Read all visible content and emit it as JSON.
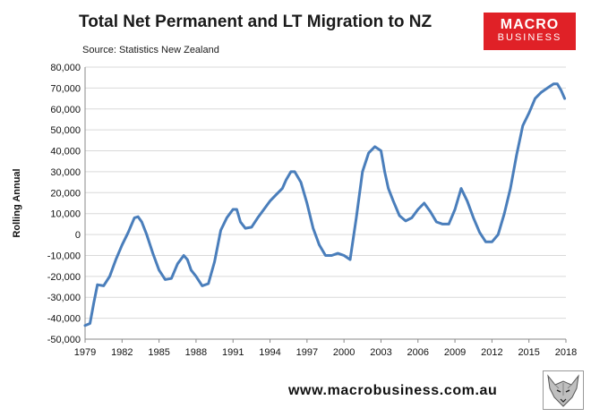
{
  "title": "Total Net Permanent and LT Migration to NZ",
  "source": "Source: Statistics New Zealand",
  "logo": {
    "line1": "MACRO",
    "line2": "BUSINESS"
  },
  "footer_url": "www.macrobusiness.com.au",
  "colors": {
    "line": "#4a7ebb",
    "grid": "#d9d9d9",
    "brand": "#e02127"
  },
  "chart_data": {
    "type": "line",
    "title": "Total Net Permanent and LT Migration to NZ",
    "ylabel": "Rolling Annual",
    "xlabel": "",
    "ylim": [
      -50000,
      80000
    ],
    "xlim": [
      1979,
      2018
    ],
    "grid": "horizontal",
    "y_ticks": [
      "-50,000",
      "-40,000",
      "-30,000",
      "-20,000",
      "-10,000",
      "0",
      "10,000",
      "20,000",
      "30,000",
      "40,000",
      "50,000",
      "60,000",
      "70,000",
      "80,000"
    ],
    "x_ticks": [
      "1979",
      "1982",
      "1985",
      "1988",
      "1991",
      "1994",
      "1997",
      "2000",
      "2003",
      "2006",
      "2009",
      "2012",
      "2015",
      "2018"
    ],
    "series": [
      {
        "color": "#4a7ebb",
        "x": [
          1979.0,
          1979.4,
          1979.7,
          1980.0,
          1980.5,
          1981.0,
          1981.5,
          1982.0,
          1982.5,
          1983.0,
          1983.3,
          1983.6,
          1984.0,
          1984.5,
          1985.0,
          1985.5,
          1986.0,
          1986.5,
          1987.0,
          1987.3,
          1987.6,
          1988.0,
          1988.5,
          1989.0,
          1989.5,
          1990.0,
          1990.5,
          1991.0,
          1991.3,
          1991.6,
          1992.0,
          1992.5,
          1993.0,
          1993.5,
          1994.0,
          1994.5,
          1995.0,
          1995.3,
          1995.7,
          1996.0,
          1996.5,
          1997.0,
          1997.5,
          1998.0,
          1998.5,
          1999.0,
          1999.5,
          2000.0,
          2000.5,
          2001.0,
          2001.5,
          2002.0,
          2002.5,
          2003.0,
          2003.3,
          2003.6,
          2004.0,
          2004.5,
          2005.0,
          2005.5,
          2006.0,
          2006.5,
          2007.0,
          2007.5,
          2008.0,
          2008.5,
          2009.0,
          2009.5,
          2010.0,
          2010.5,
          2011.0,
          2011.5,
          2012.0,
          2012.5,
          2013.0,
          2013.5,
          2014.0,
          2014.5,
          2015.0,
          2015.5,
          2016.0,
          2016.5,
          2017.0,
          2017.3,
          2017.6,
          2017.9
        ],
        "values": [
          -43500,
          -42500,
          -33000,
          -24000,
          -24500,
          -20000,
          -12000,
          -5000,
          1000,
          8000,
          8500,
          6000,
          0,
          -9000,
          -17000,
          -21500,
          -21000,
          -14000,
          -10000,
          -12000,
          -17000,
          -20000,
          -24500,
          -23500,
          -13000,
          2000,
          8000,
          12000,
          12000,
          6000,
          3000,
          3500,
          8000,
          12000,
          16000,
          19000,
          22000,
          26000,
          30000,
          30000,
          25000,
          15000,
          3000,
          -5000,
          -10000,
          -10000,
          -9000,
          -10000,
          -12000,
          8000,
          30000,
          39000,
          42000,
          40000,
          30000,
          22000,
          16000,
          9000,
          6500,
          8000,
          12000,
          15000,
          11000,
          6000,
          5000,
          5000,
          12000,
          22000,
          16000,
          8000,
          1000,
          -3500,
          -3500,
          0,
          10000,
          22000,
          38000,
          52000,
          58000,
          65000,
          68000,
          70000,
          72000,
          72000,
          69000,
          65000
        ]
      }
    ]
  }
}
